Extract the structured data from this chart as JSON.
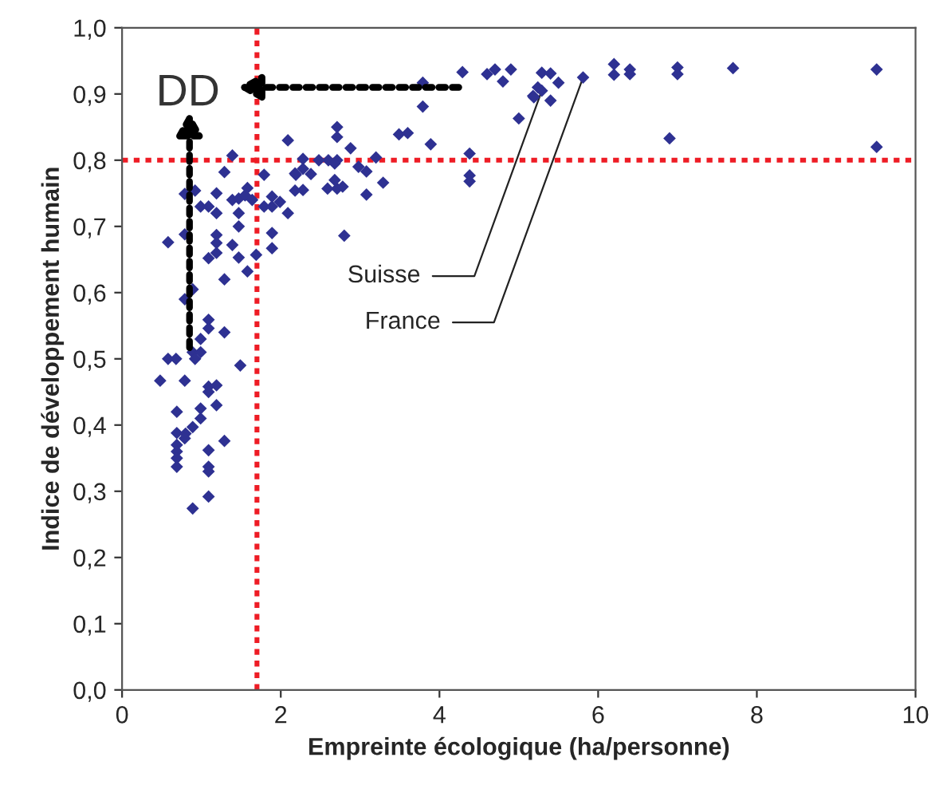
{
  "chart_data": {
    "type": "scatter",
    "xlabel": "Empreinte écologique (ha/personne)",
    "ylabel": "Indice de développement humain",
    "series": [
      {
        "color": "#2e3192",
        "x": [
          0.48,
          0.58,
          0.68,
          0.58,
          0.79,
          0.79,
          0.79,
          0.69,
          0.69,
          0.8,
          0.69,
          0.69,
          0.69,
          0.69,
          0.79,
          0.89,
          0.99,
          0.99,
          0.89,
          1.09,
          1.09,
          1.09,
          1.09,
          1.29,
          1.19,
          1.09,
          1.19,
          1.09,
          0.89,
          0.99,
          0.92,
          0.99,
          1.49,
          1.09,
          1.09,
          1.29,
          0.89,
          0.79,
          0.92,
          0.99,
          1.09,
          1.19,
          1.29,
          1.39,
          1.19,
          1.39,
          1.47,
          1.55,
          1.64,
          1.47,
          1.47,
          1.19,
          1.19,
          1.09,
          1.19,
          1.39,
          1.47,
          1.29,
          1.58,
          1.69,
          1.79,
          1.58,
          1.79,
          1.89,
          1.99,
          1.89,
          2.09,
          1.89,
          1.89,
          2.18,
          2.28,
          2.18,
          2.28,
          2.38,
          2.09,
          2.71,
          2.71,
          2.71,
          2.71,
          2.6,
          4.29,
          4.6,
          4.7,
          4.8,
          4.9,
          3.79,
          3.79,
          5.0,
          5.18,
          5.24,
          3.49,
          3.6,
          3.89,
          2.88,
          3.2,
          4.38,
          4.38,
          4.38,
          2.28,
          2.48,
          2.68,
          2.98,
          3.08,
          3.29,
          2.19,
          2.68,
          2.78,
          2.59,
          3.08,
          2.8,
          5.29,
          5.4,
          5.5,
          5.19,
          5.29,
          5.4,
          5.81,
          6.2,
          6.2,
          6.4,
          6.4,
          7.0,
          7.0,
          6.9,
          7.7,
          9.51,
          9.51
        ],
        "values": [
          0.467,
          0.5,
          0.5,
          0.676,
          0.688,
          0.59,
          0.467,
          0.42,
          0.388,
          0.387,
          0.37,
          0.36,
          0.35,
          0.337,
          0.38,
          0.397,
          0.425,
          0.41,
          0.274,
          0.292,
          0.337,
          0.33,
          0.362,
          0.376,
          0.43,
          0.458,
          0.46,
          0.45,
          0.51,
          0.51,
          0.5,
          0.53,
          0.49,
          0.559,
          0.546,
          0.54,
          0.605,
          0.749,
          0.754,
          0.73,
          0.73,
          0.72,
          0.782,
          0.807,
          0.75,
          0.74,
          0.742,
          0.747,
          0.74,
          0.72,
          0.7,
          0.687,
          0.675,
          0.652,
          0.66,
          0.672,
          0.653,
          0.62,
          0.632,
          0.657,
          0.778,
          0.758,
          0.73,
          0.745,
          0.737,
          0.73,
          0.72,
          0.69,
          0.667,
          0.754,
          0.755,
          0.78,
          0.787,
          0.779,
          0.83,
          0.757,
          0.8,
          0.85,
          0.835,
          0.8,
          0.933,
          0.93,
          0.937,
          0.919,
          0.937,
          0.917,
          0.881,
          0.863,
          0.897,
          0.91,
          0.839,
          0.841,
          0.824,
          0.818,
          0.804,
          0.81,
          0.777,
          0.768,
          0.802,
          0.8,
          0.795,
          0.79,
          0.783,
          0.766,
          0.778,
          0.77,
          0.76,
          0.757,
          0.748,
          0.686,
          0.932,
          0.931,
          0.917,
          0.895,
          0.905,
          0.89,
          0.925,
          0.945,
          0.929,
          0.937,
          0.93,
          0.94,
          0.93,
          0.833,
          0.939,
          0.937,
          0.82
        ]
      }
    ],
    "marker": "diamond",
    "xlim": [
      0,
      10
    ],
    "xticks": [
      0,
      2,
      4,
      6,
      8,
      10
    ],
    "ylim": [
      0,
      1
    ],
    "yticks": [
      {
        "value": 0,
        "label": "0,0"
      },
      {
        "value": 0.1,
        "label": "0,1"
      },
      {
        "value": 0.2,
        "label": "0,2"
      },
      {
        "value": 0.3,
        "label": "0,3"
      },
      {
        "value": 0.4,
        "label": "0,4"
      },
      {
        "value": 0.5,
        "label": "0,5"
      },
      {
        "value": 0.6,
        "label": "0,6"
      },
      {
        "value": 0.7,
        "label": "0,7"
      },
      {
        "value": 0.8,
        "label": "0,8"
      },
      {
        "value": 0.9,
        "label": "0,9"
      },
      {
        "value": 1,
        "label": "1,0"
      }
    ],
    "ref_lines": [
      {
        "axis": "x",
        "value": 1.7,
        "color": "#ee1c25",
        "line_style": "dotted"
      },
      {
        "axis": "y",
        "value": 0.8,
        "color": "#ee1c25",
        "line_style": "dotted"
      }
    ],
    "annotations": [
      {
        "text": "Suisse",
        "x": 5.29,
        "y": 0.905
      },
      {
        "text": "France",
        "x": 5.81,
        "y": 0.925
      },
      "DD"
    ]
  }
}
